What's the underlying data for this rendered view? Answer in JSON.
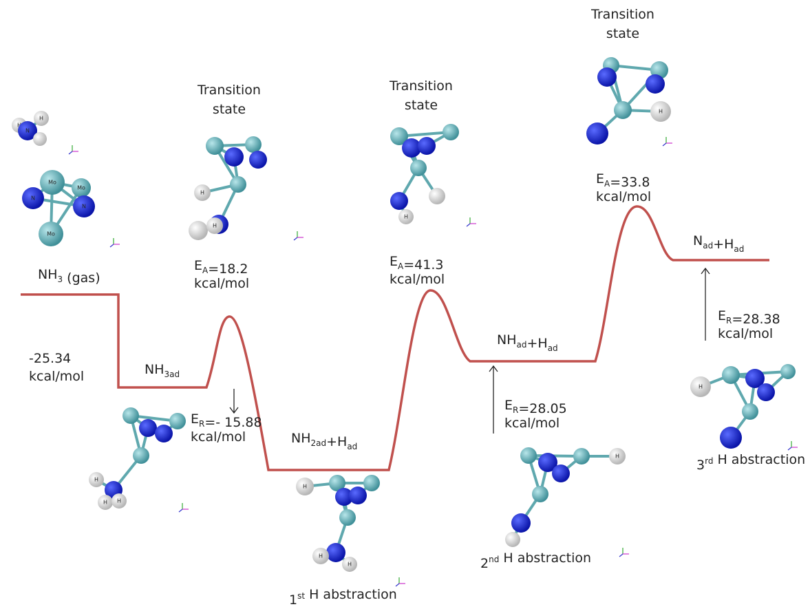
{
  "labels": [
    {
      "lines": [
        [
          "NH",
          {
            "sub": "3"
          },
          " (gas)"
        ]
      ]
    },
    {
      "lines": [
        [
          "Transition"
        ],
        [
          "state"
        ]
      ]
    },
    {
      "lines": [
        [
          "Transition"
        ],
        [
          "state"
        ]
      ]
    },
    {
      "lines": [
        [
          "Transition"
        ],
        [
          "state"
        ]
      ]
    },
    {
      "lines": [
        [
          "E",
          {
            "sub": "A"
          },
          "=18.2"
        ],
        [
          " kcal/mol"
        ]
      ]
    },
    {
      "lines": [
        [
          "E",
          {
            "sub": "A"
          },
          "=41.3"
        ],
        [
          " kcal/mol"
        ]
      ]
    },
    {
      "lines": [
        [
          "E",
          {
            "sub": "A"
          },
          "=33.8"
        ],
        [
          " kcal/mol"
        ]
      ]
    },
    {
      "lines": [
        [
          "-25.34"
        ],
        [
          "kcal/mol"
        ]
      ]
    },
    {
      "lines": [
        [
          "NH",
          {
            "sub": "3ad"
          }
        ]
      ]
    },
    {
      "lines": [
        [
          "E",
          {
            "sub": "R"
          },
          "=- 15.88"
        ],
        [
          "kcal/mol"
        ]
      ]
    },
    {
      "lines": [
        [
          "NH",
          {
            "sub": "2ad"
          },
          "+H",
          {
            "sub": "ad"
          }
        ]
      ]
    },
    {
      "lines": [
        [
          "NH",
          {
            "sub": "ad"
          },
          "+H",
          {
            "sub": "ad"
          }
        ]
      ]
    },
    {
      "lines": [
        [
          "E",
          {
            "sub": "R"
          },
          "=28.05"
        ],
        [
          "kcal/mol"
        ]
      ]
    },
    {
      "lines": [
        [
          "N",
          {
            "sub": "ad"
          },
          "+H",
          {
            "sub": "ad"
          }
        ]
      ]
    },
    {
      "lines": [
        [
          "E",
          {
            "sub": "R"
          },
          "=28.38"
        ],
        [
          "kcal/mol"
        ]
      ]
    },
    {
      "lines": [
        [
          "1",
          {
            "sup": "st"
          },
          " H abstraction"
        ]
      ]
    },
    {
      "lines": [
        [
          "2",
          {
            "sup": "nd"
          },
          "  H abstraction"
        ]
      ]
    },
    {
      "lines": [
        [
          "3",
          {
            "sup": "rd"
          },
          " H abstraction"
        ]
      ]
    }
  ],
  "molecules": [
    [
      "H",
      "H",
      "N",
      "Mo",
      "Mo",
      "N",
      "N",
      "Mo"
    ],
    [
      "H",
      "H"
    ],
    [
      "H"
    ],
    [
      "H"
    ],
    [
      "H",
      "H",
      "H"
    ],
    [
      "H",
      "H",
      "H"
    ],
    [
      "H"
    ],
    [
      "H"
    ]
  ]
}
